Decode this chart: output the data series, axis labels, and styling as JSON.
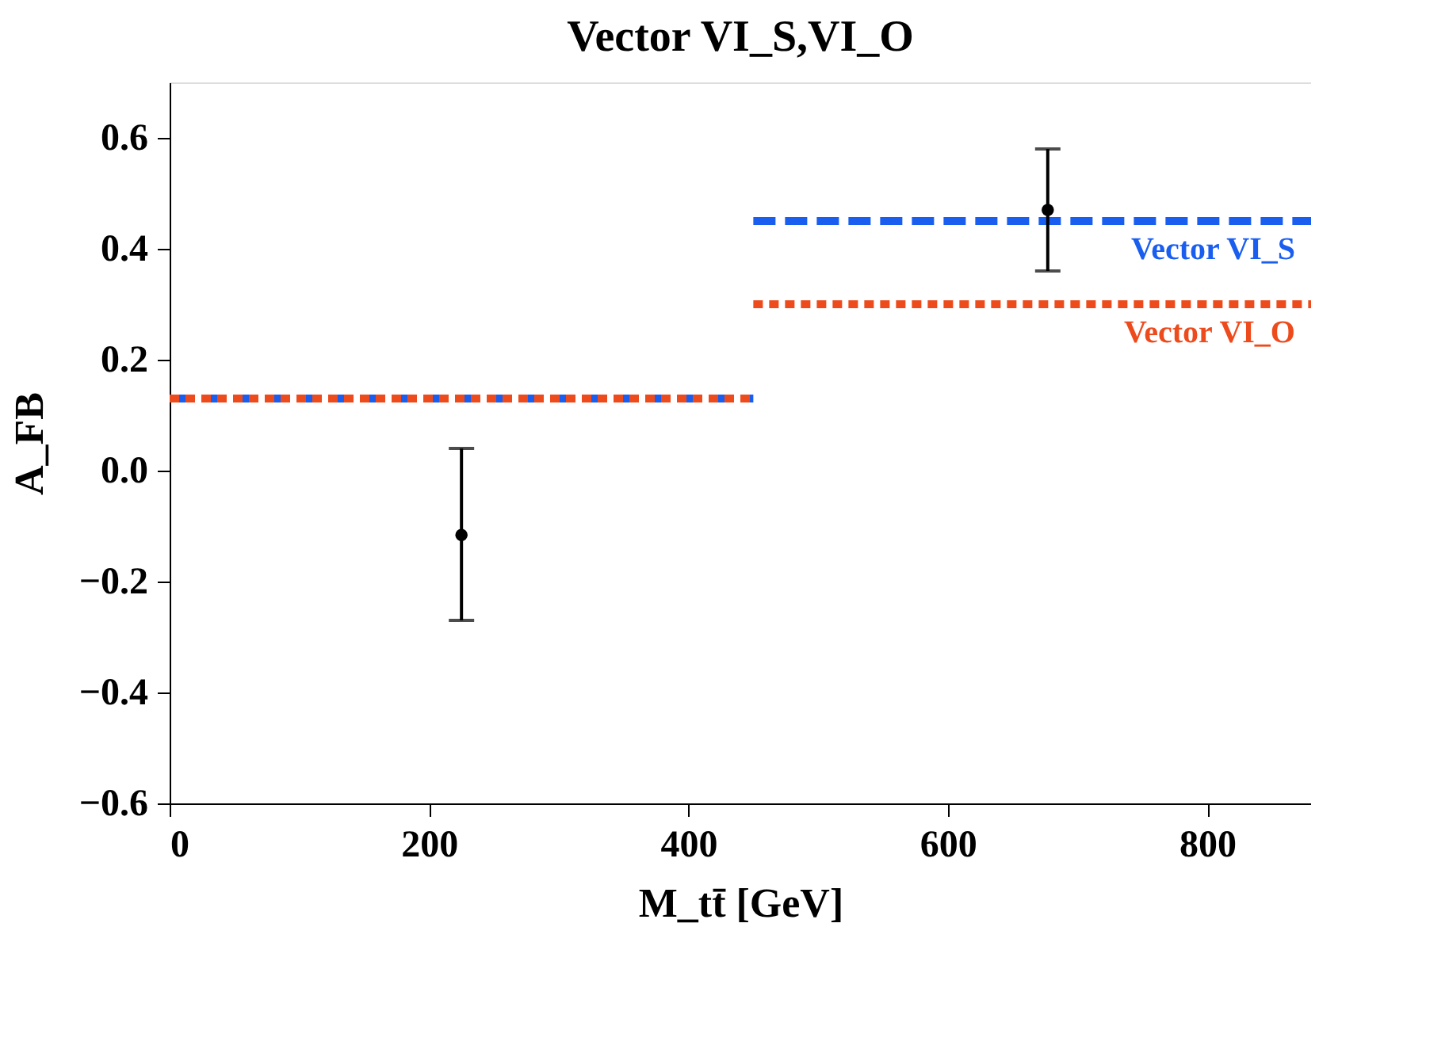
{
  "chart_data": {
    "type": "step",
    "title": "Vector VI_S,VI_O",
    "xlabel": "M_tt̄ [GeV]",
    "ylabel": "A_FB",
    "xlim": [
      0,
      880
    ],
    "xticks": [
      0,
      200,
      400,
      600,
      800
    ],
    "ylim": [
      -0.6,
      0.7
    ],
    "yticks": [
      -0.6,
      -0.4,
      -0.2,
      {
        "value": 0,
        "label": "0.0"
      },
      0.2,
      0.4,
      0.6
    ],
    "grid": false,
    "series": [
      {
        "name": "Vector VI_S",
        "color": "#1a5ef0",
        "line_style": "dashed",
        "x": [
          0,
          450,
          880
        ],
        "values": [
          0.13,
          0.45,
          0.45
        ]
      },
      {
        "name": "Vector VI_O",
        "color": "#ee4b1c",
        "line_style": "dotted",
        "x": [
          0,
          450,
          880
        ],
        "values": [
          0.13,
          0.3,
          0.3
        ]
      },
      {
        "type": "scatter",
        "color": "#000000",
        "marker": "circle",
        "x": [
          225,
          677
        ],
        "values": [
          -0.116,
          0.47
        ],
        "errors": [
          [
            -0.27,
            0.04
          ],
          [
            0.36,
            0.58
          ]
        ]
      }
    ]
  }
}
